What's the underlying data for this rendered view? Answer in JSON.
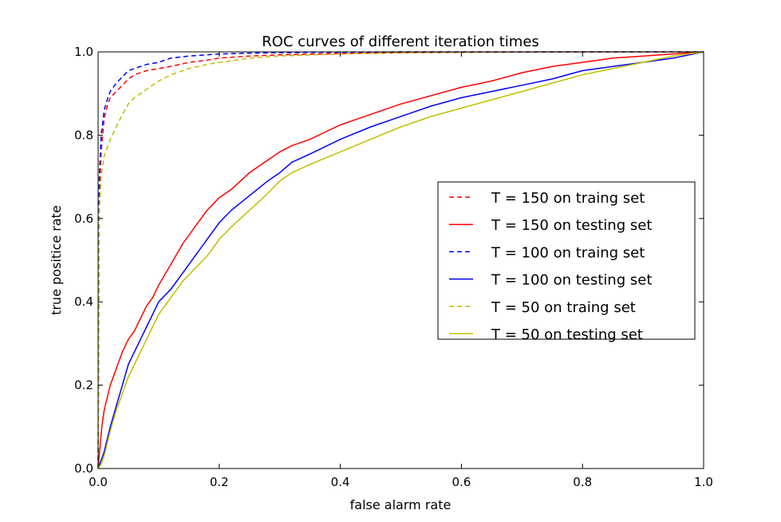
{
  "chart_data": {
    "type": "line",
    "title": "ROC curves of different iteration times",
    "xlabel": "false alarm rate",
    "ylabel": "true positice rate",
    "xlim": [
      0,
      1
    ],
    "ylim": [
      0,
      1
    ],
    "xticks": [
      "0.0",
      "0.2",
      "0.4",
      "0.6",
      "0.8",
      "1.0"
    ],
    "yticks": [
      "0.0",
      "0.2",
      "0.4",
      "0.6",
      "0.8",
      "1.0"
    ],
    "grid": false,
    "legend_position": "right",
    "series": [
      {
        "name": "T = 150 on traing set",
        "color": "#ff0000",
        "dash": "dashed",
        "x": [
          0,
          0.002,
          0.005,
          0.01,
          0.015,
          0.02,
          0.03,
          0.04,
          0.05,
          0.06,
          0.08,
          0.1,
          0.12,
          0.15,
          0.18,
          0.2,
          0.25,
          0.3,
          0.4,
          0.5,
          0.6,
          0.8,
          1.0
        ],
        "y": [
          0,
          0.64,
          0.76,
          0.84,
          0.87,
          0.89,
          0.905,
          0.92,
          0.935,
          0.945,
          0.955,
          0.96,
          0.965,
          0.975,
          0.98,
          0.985,
          0.99,
          0.993,
          0.996,
          0.998,
          0.999,
          1.0,
          1.0
        ]
      },
      {
        "name": "T = 150 on testing set",
        "color": "#ff0000",
        "dash": "solid",
        "x": [
          0,
          0.003,
          0.006,
          0.01,
          0.015,
          0.02,
          0.03,
          0.04,
          0.05,
          0.06,
          0.07,
          0.08,
          0.09,
          0.1,
          0.12,
          0.14,
          0.16,
          0.18,
          0.2,
          0.22,
          0.25,
          0.28,
          0.3,
          0.32,
          0.35,
          0.4,
          0.45,
          0.5,
          0.55,
          0.6,
          0.65,
          0.7,
          0.75,
          0.8,
          0.85,
          0.9,
          0.95,
          1.0
        ],
        "y": [
          0,
          0.05,
          0.1,
          0.14,
          0.17,
          0.2,
          0.24,
          0.28,
          0.31,
          0.33,
          0.36,
          0.39,
          0.41,
          0.44,
          0.49,
          0.54,
          0.58,
          0.62,
          0.65,
          0.67,
          0.71,
          0.74,
          0.76,
          0.775,
          0.79,
          0.825,
          0.85,
          0.875,
          0.895,
          0.915,
          0.93,
          0.95,
          0.965,
          0.975,
          0.985,
          0.99,
          0.995,
          1.0
        ]
      },
      {
        "name": "T = 100 on traing set",
        "color": "#0000ff",
        "dash": "dashed",
        "x": [
          0,
          0.002,
          0.005,
          0.01,
          0.015,
          0.02,
          0.03,
          0.04,
          0.05,
          0.06,
          0.08,
          0.1,
          0.12,
          0.15,
          0.2,
          0.25,
          0.3,
          0.4,
          0.5,
          0.6,
          0.8,
          1.0
        ],
        "y": [
          0,
          0.7,
          0.8,
          0.86,
          0.885,
          0.905,
          0.925,
          0.94,
          0.955,
          0.96,
          0.97,
          0.975,
          0.985,
          0.99,
          0.995,
          0.997,
          0.998,
          0.999,
          1.0,
          1.0,
          1.0,
          1.0
        ]
      },
      {
        "name": "T = 100 on testing set",
        "color": "#0000ff",
        "dash": "solid",
        "x": [
          0,
          0.005,
          0.01,
          0.015,
          0.02,
          0.03,
          0.04,
          0.05,
          0.06,
          0.07,
          0.08,
          0.09,
          0.1,
          0.12,
          0.14,
          0.16,
          0.18,
          0.2,
          0.22,
          0.25,
          0.28,
          0.3,
          0.32,
          0.35,
          0.4,
          0.45,
          0.5,
          0.55,
          0.6,
          0.65,
          0.7,
          0.75,
          0.8,
          0.85,
          0.9,
          0.95,
          1.0
        ],
        "y": [
          0,
          0.02,
          0.04,
          0.07,
          0.1,
          0.15,
          0.2,
          0.25,
          0.28,
          0.31,
          0.34,
          0.37,
          0.4,
          0.43,
          0.47,
          0.51,
          0.55,
          0.59,
          0.62,
          0.655,
          0.69,
          0.71,
          0.735,
          0.755,
          0.79,
          0.82,
          0.845,
          0.87,
          0.89,
          0.905,
          0.92,
          0.935,
          0.955,
          0.965,
          0.975,
          0.985,
          1.0
        ]
      },
      {
        "name": "T = 50 on traing set",
        "color": "#bfbf00",
        "dash": "dashed",
        "x": [
          0,
          0.002,
          0.005,
          0.01,
          0.015,
          0.02,
          0.03,
          0.04,
          0.05,
          0.06,
          0.08,
          0.1,
          0.12,
          0.15,
          0.18,
          0.2,
          0.25,
          0.3,
          0.4,
          0.5,
          0.6,
          0.8,
          1.0
        ],
        "y": [
          0,
          0.62,
          0.7,
          0.75,
          0.77,
          0.79,
          0.82,
          0.85,
          0.875,
          0.89,
          0.91,
          0.93,
          0.945,
          0.96,
          0.97,
          0.975,
          0.985,
          0.99,
          0.995,
          0.998,
          0.999,
          1.0,
          1.0
        ]
      },
      {
        "name": "T = 50 on testing set",
        "color": "#bfbf00",
        "dash": "solid",
        "x": [
          0,
          0.005,
          0.01,
          0.015,
          0.02,
          0.03,
          0.04,
          0.05,
          0.06,
          0.07,
          0.08,
          0.09,
          0.1,
          0.12,
          0.14,
          0.16,
          0.18,
          0.2,
          0.22,
          0.25,
          0.28,
          0.3,
          0.32,
          0.35,
          0.4,
          0.45,
          0.5,
          0.55,
          0.6,
          0.65,
          0.7,
          0.75,
          0.8,
          0.85,
          0.9,
          0.95,
          1.0
        ],
        "y": [
          0,
          0.01,
          0.03,
          0.06,
          0.09,
          0.14,
          0.18,
          0.22,
          0.25,
          0.28,
          0.31,
          0.34,
          0.37,
          0.41,
          0.45,
          0.48,
          0.51,
          0.55,
          0.58,
          0.62,
          0.66,
          0.69,
          0.71,
          0.73,
          0.76,
          0.79,
          0.82,
          0.845,
          0.865,
          0.885,
          0.905,
          0.925,
          0.945,
          0.96,
          0.975,
          0.99,
          1.0
        ]
      }
    ]
  }
}
